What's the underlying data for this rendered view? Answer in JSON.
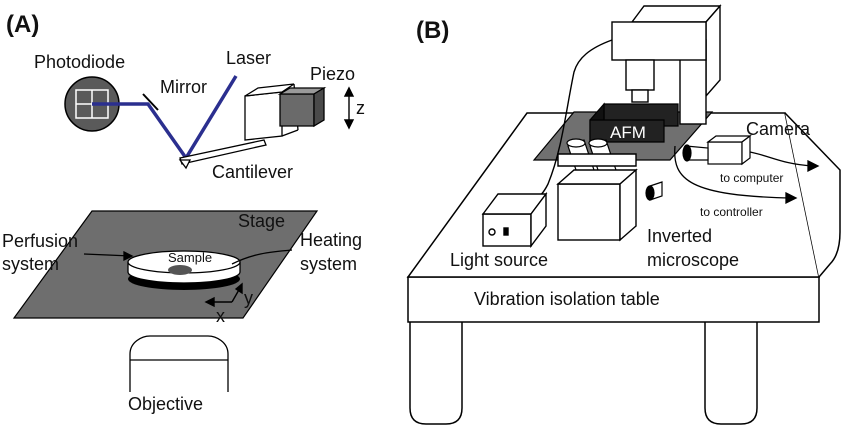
{
  "panel_a": {
    "letter": "(A)",
    "labels": {
      "photodiode": "Photodiode",
      "mirror": "Mirror",
      "laser": "Laser",
      "piezo": "Piezo",
      "z_axis": "z",
      "cantilever": "Cantilever",
      "stage": "Stage",
      "perfusion_line1": "Perfusion",
      "perfusion_line2": "system",
      "heating_line1": "Heating",
      "heating_line2": "system",
      "sample": "Sample",
      "y_axis": "y",
      "x_axis": "x",
      "objective": "Objective"
    }
  },
  "panel_b": {
    "letter": "(B)",
    "labels": {
      "afm": "AFM",
      "camera": "Camera",
      "to_computer": "to computer",
      "to_controller": "to controller",
      "light_source": "Light source",
      "inverted_line1": "Inverted",
      "inverted_line2": "microscope",
      "table": "Vibration isolation table"
    }
  },
  "colors": {
    "laser_beam": "#2b2f8f",
    "stage_fill": "#6e6e6e",
    "piezo_dark": "#6a6a6a",
    "afm_box": "#222222",
    "afm_platform": "#707070",
    "photodiode_fill": "#5a5a5a"
  }
}
